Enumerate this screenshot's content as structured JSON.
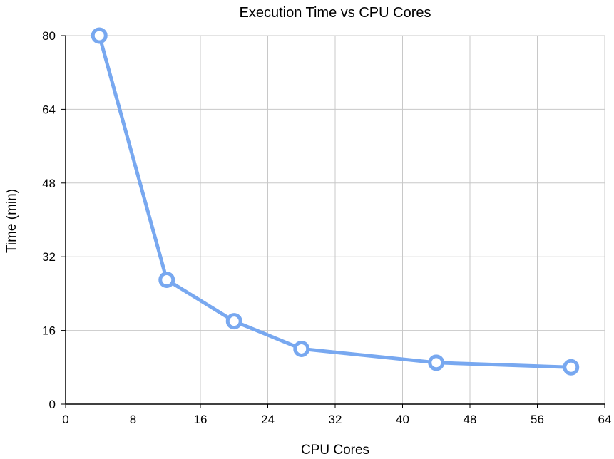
{
  "chart_data": {
    "type": "line",
    "title": "Execution Time vs CPU Cores",
    "xlabel": "CPU Cores",
    "ylabel": "Time (min)",
    "xlim": [
      0,
      64
    ],
    "ylim": [
      0,
      80
    ],
    "xticks": [
      "0",
      "8",
      "16",
      "24",
      "32",
      "40",
      "48",
      "56",
      "64"
    ],
    "yticks": [
      "0",
      "16",
      "32",
      "48",
      "64",
      "80"
    ],
    "grid": true,
    "legend": "none",
    "series": [
      {
        "color": "#78a8f0",
        "points": [
          {
            "x": 4,
            "y": 80
          },
          {
            "x": 12,
            "y": 27
          },
          {
            "x": 20,
            "y": 18
          },
          {
            "x": 28,
            "y": 12
          },
          {
            "x": 44,
            "y": 9
          },
          {
            "x": 60,
            "y": 8
          }
        ]
      }
    ]
  }
}
